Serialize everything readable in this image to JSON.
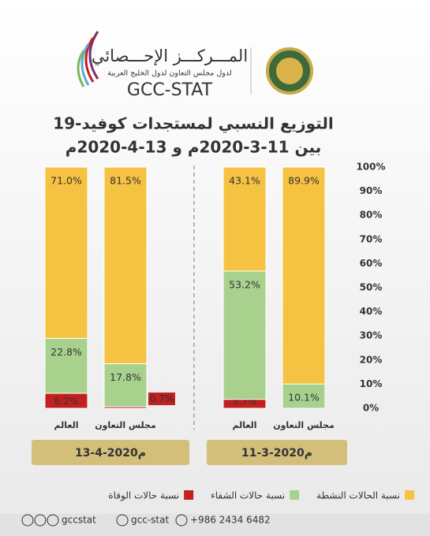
{
  "header": {
    "org_name": "المـــركـــز الإحـــصائي",
    "org_subtitle": "لدول مجلس التعاون لدول الخليج العربية",
    "org_code": "GCC-STAT"
  },
  "chart_data": {
    "type": "bar",
    "stacked": true,
    "title": "التوزيع النسبي لمستجدات كوفيد-19",
    "subtitle": "بين 11-3-2020م و 13-4-2020م",
    "groups": [
      "13-4-2020م",
      "11-3-2020م"
    ],
    "categories": [
      "العالم",
      "مجلس التعاون",
      "العالم",
      "مجلس التعاون"
    ],
    "series": [
      {
        "name": "نسبة الحالات النشطة",
        "color": "#f5c242",
        "values": [
          71.0,
          81.5,
          43.1,
          89.9
        ],
        "value_labels": [
          "71.0%",
          "81.5%",
          "43.1%",
          "89.9%"
        ]
      },
      {
        "name": "نسبة حالات الشفاء",
        "color": "#a9d18e",
        "values": [
          22.8,
          17.8,
          53.2,
          10.1
        ],
        "value_labels": [
          "22.8%",
          "17.8%",
          "53.2%",
          "10.1%"
        ]
      },
      {
        "name": "نسبة حالات الوفاة",
        "color": "#c0211f",
        "values": [
          6.2,
          0.7,
          3.7,
          0
        ],
        "value_labels": [
          "6.2%",
          "0.7%",
          "3.7%",
          null
        ]
      }
    ],
    "ylim": [
      0,
      100
    ],
    "yticks": [
      {
        "value": 0,
        "label": "0%"
      },
      {
        "value": 10,
        "label": "10%"
      },
      {
        "value": 20,
        "label": "20%"
      },
      {
        "value": 30,
        "label": "30%"
      },
      {
        "value": 40,
        "label": "40%"
      },
      {
        "value": 50,
        "label": "50%"
      },
      {
        "value": 60,
        "label": "60%"
      },
      {
        "value": 70,
        "label": "70%"
      },
      {
        "value": 80,
        "label": "80%"
      },
      {
        "value": 90,
        "label": "90%"
      },
      {
        "value": 100,
        "label": "100%"
      }
    ],
    "legend": "bottom"
  },
  "footer": {
    "instagram": "gccstat",
    "youtube": "gcc-stat",
    "phone": "+986 2434 6482"
  }
}
